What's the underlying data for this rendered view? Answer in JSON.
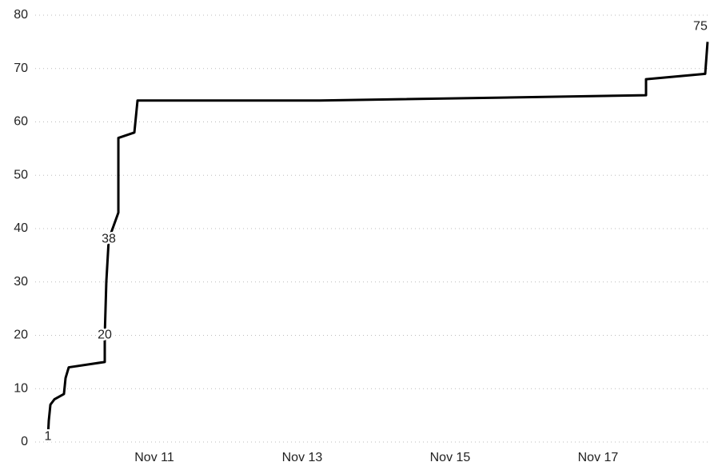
{
  "chart_data": {
    "type": "line",
    "x": [
      9.562,
      9.573,
      9.595,
      9.649,
      9.778,
      9.8,
      9.843,
      10.33,
      10.33,
      10.351,
      10.384,
      10.514,
      10.514,
      10.73,
      10.773,
      13.238,
      17.649,
      17.649,
      18.449,
      18.481
    ],
    "series": [
      {
        "color": "#000000",
        "values": [
          1,
          4,
          7,
          8,
          9,
          12,
          14,
          15,
          20,
          30,
          38,
          43,
          57,
          58,
          64,
          64,
          65,
          68,
          69,
          75
        ],
        "value_labels": [
          "1",
          null,
          null,
          null,
          null,
          null,
          null,
          null,
          "20",
          null,
          "38",
          null,
          null,
          null,
          null,
          null,
          null,
          null,
          null,
          "75"
        ]
      }
    ],
    "xlim": [
      9.454,
      18.514
    ],
    "xticks": [
      {
        "value": 11,
        "label": "Nov 11"
      },
      {
        "value": 13,
        "label": "Nov 13"
      },
      {
        "value": 15,
        "label": "Nov 15"
      },
      {
        "value": 17,
        "label": "Nov 17"
      }
    ],
    "ylim": [
      0,
      80
    ],
    "yticks": [
      0,
      10,
      20,
      30,
      40,
      50,
      60,
      70,
      80
    ],
    "grid": true
  }
}
